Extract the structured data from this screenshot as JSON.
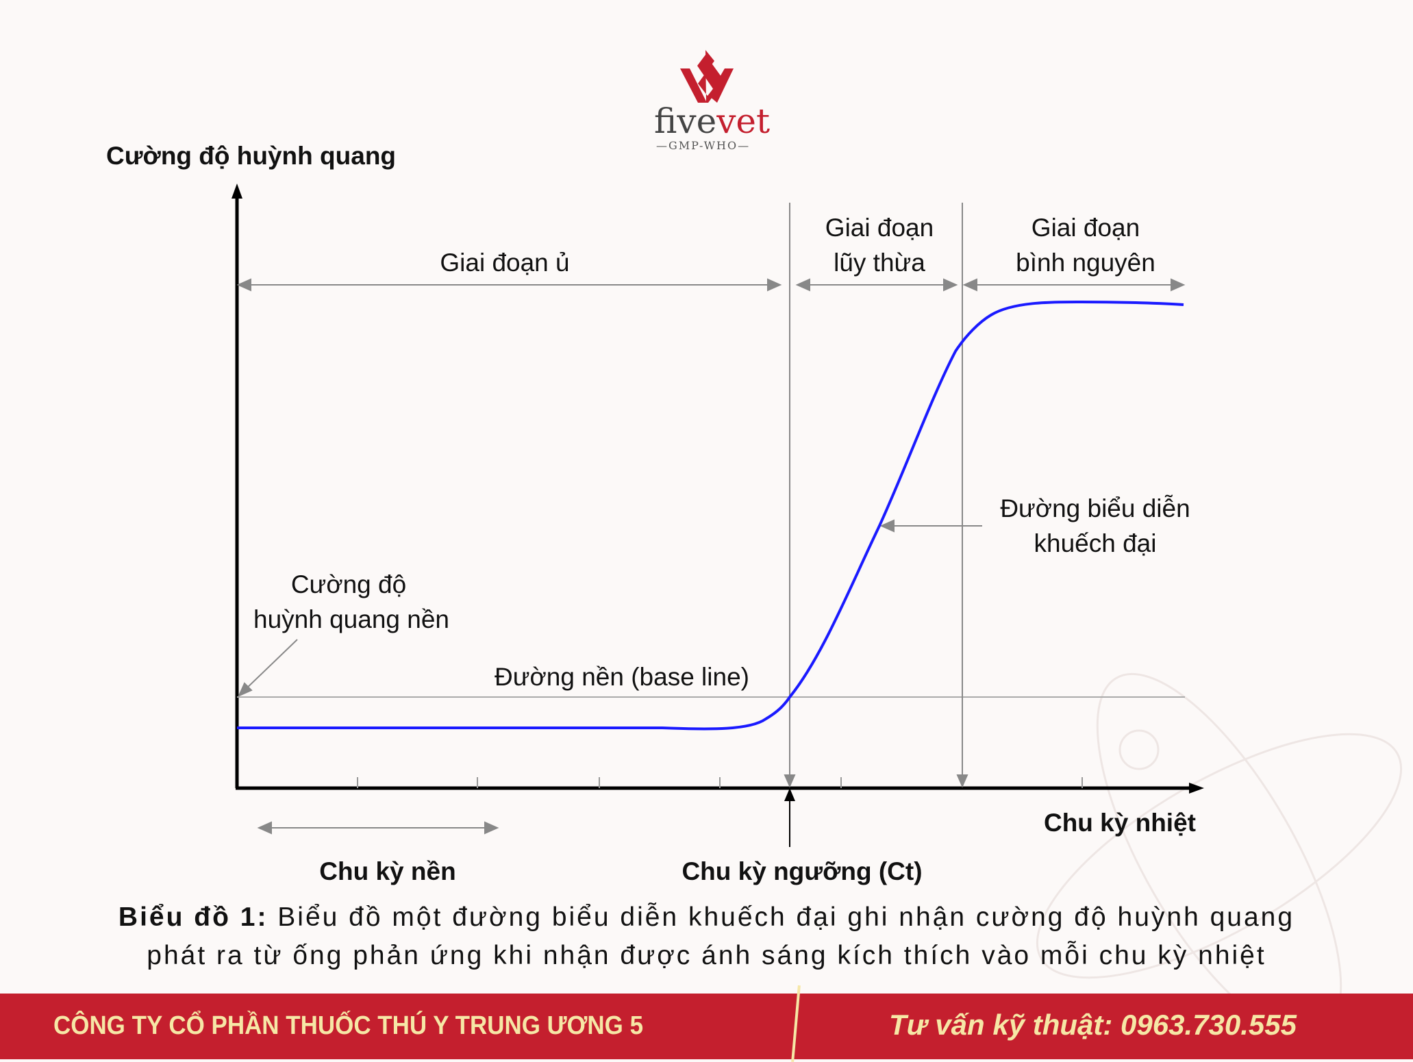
{
  "logo": {
    "name_part1": "five",
    "name_part2": "vet",
    "subtitle": "—GMP-WHO—"
  },
  "diagram": {
    "y_axis_label": "Cường độ huỳnh quang",
    "x_axis_label": "Chu kỳ nhiệt",
    "phases": {
      "incubation": "Giai đoạn ủ",
      "exponential_line1": "Giai đoạn",
      "exponential_line2": "lũy thừa",
      "plateau_line1": "Giai đoạn",
      "plateau_line2": "bình nguyên"
    },
    "amplification_curve_line1": "Đường biểu diễn",
    "amplification_curve_line2": "khuếch đại",
    "background_fluorescence_line1": "Cường độ",
    "background_fluorescence_line2": "huỳnh quang nền",
    "baseline": "Đường nền (base line)",
    "baseline_cycles": "Chu kỳ nền",
    "threshold_cycle": "Chu kỳ ngưỡng (Ct)",
    "curve_color": "#1a1aff"
  },
  "caption": {
    "prefix": "Biểu đồ 1:",
    "text_line1": " Biểu đồ một đường biểu diễn khuếch đại ghi nhận cường độ huỳnh quang",
    "text_line2": "phát ra từ ống phản ứng khi nhận được ánh sáng kích thích vào mỗi chu kỳ nhiệt"
  },
  "footer": {
    "company": "CÔNG TY CỔ PHẦN THUỐC THÚ Y TRUNG ƯƠNG 5",
    "hotline": "Tư vấn kỹ thuật: 0963.730.555",
    "brand_color": "#c41f2e"
  }
}
